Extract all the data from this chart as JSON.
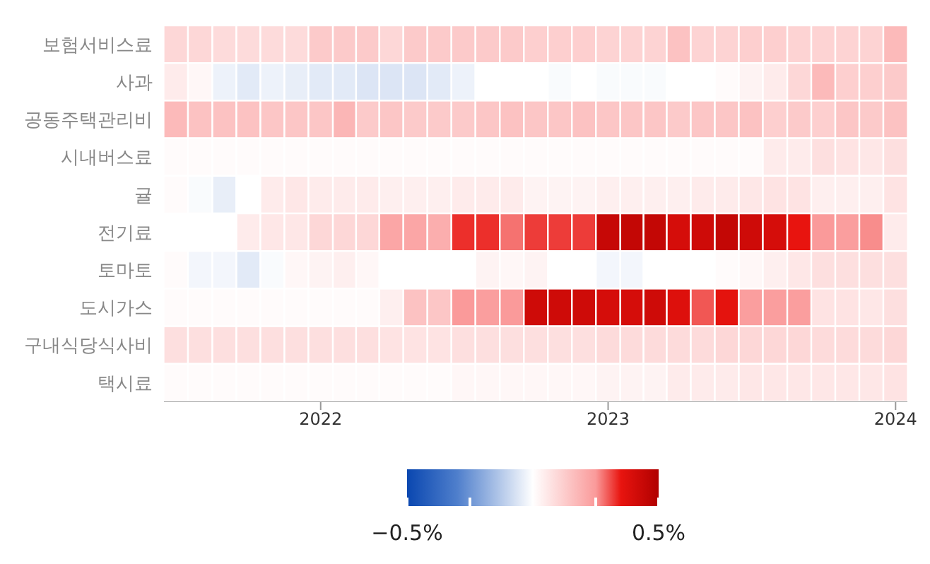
{
  "chart_data": {
    "type": "heatmap",
    "x": [
      "2021-07",
      "2021-08",
      "2021-09",
      "2021-10",
      "2021-11",
      "2021-12",
      "2022-01",
      "2022-02",
      "2022-03",
      "2022-04",
      "2022-05",
      "2022-06",
      "2022-07",
      "2022-08",
      "2022-09",
      "2022-10",
      "2022-11",
      "2022-12",
      "2023-01",
      "2023-02",
      "2023-03",
      "2023-04",
      "2023-05",
      "2023-06",
      "2023-07",
      "2023-08",
      "2023-09",
      "2023-10",
      "2023-11",
      "2023-12",
      "2024-01"
    ],
    "xlim": [
      "2021-06-16",
      "2024-01-16"
    ],
    "xticks": [
      {
        "value": "2022-01-01",
        "label": "2022"
      },
      {
        "value": "2023-01-01",
        "label": "2023"
      },
      {
        "value": "2024-01-01",
        "label": "2024"
      }
    ],
    "y_categories": [
      "보험서비스료",
      "사과",
      "공동주택관리비",
      "시내버스료",
      "귤",
      "전기료",
      "토마토",
      "도시가스",
      "구내식당식사비",
      "택시료"
    ],
    "cells": [
      [
        0.1,
        0.1,
        0.09,
        0.09,
        0.09,
        0.09,
        0.13,
        0.13,
        0.13,
        0.1,
        0.13,
        0.13,
        0.13,
        0.13,
        0.13,
        0.12,
        0.12,
        0.12,
        0.11,
        0.11,
        0.11,
        0.15,
        0.11,
        0.11,
        0.12,
        0.12,
        0.11,
        0.11,
        0.11,
        0.11,
        0.17
      ],
      [
        0.05,
        0.02,
        -0.03,
        -0.05,
        -0.03,
        -0.04,
        -0.05,
        -0.05,
        -0.06,
        -0.06,
        -0.06,
        -0.05,
        -0.03,
        0,
        0,
        0,
        -0.01,
        0,
        -0.01,
        -0.01,
        -0.01,
        0,
        0,
        0.01,
        0.03,
        0.05,
        0.1,
        0.17,
        0.12,
        0.12,
        0.13
      ],
      [
        0.17,
        0.15,
        0.15,
        0.15,
        0.14,
        0.14,
        0.14,
        0.18,
        0.13,
        0.14,
        0.13,
        0.13,
        0.13,
        0.14,
        0.15,
        0.14,
        0.14,
        0.15,
        0.14,
        0.14,
        0.14,
        0.13,
        0.14,
        0.14,
        0.15,
        0.12,
        0.13,
        0.12,
        0.14,
        0.13,
        0.15
      ],
      [
        0.01,
        0.01,
        0.01,
        0.01,
        0.01,
        0.01,
        0.01,
        0.01,
        0.01,
        0.01,
        0.01,
        0.01,
        0.01,
        0.01,
        0.01,
        0.01,
        0.01,
        0.01,
        0.01,
        0.01,
        0.01,
        0.01,
        0.01,
        0.01,
        0.01,
        0.05,
        0.05,
        0.08,
        0.07,
        0.06,
        0.08
      ],
      [
        0.01,
        -0.01,
        -0.04,
        0,
        0.05,
        0.06,
        0.05,
        0.05,
        0.05,
        0.04,
        0.04,
        0.04,
        0.05,
        0.05,
        0.05,
        0.03,
        0.03,
        0.03,
        0.04,
        0.04,
        0.04,
        0.04,
        0.05,
        0.05,
        0.06,
        0.07,
        0.07,
        0.04,
        0.04,
        0.04,
        0.07
      ],
      [
        0,
        0,
        0,
        0.05,
        0.06,
        0.06,
        0.1,
        0.1,
        0.1,
        0.22,
        0.22,
        0.2,
        0.33,
        0.33,
        0.28,
        0.32,
        0.32,
        0.32,
        0.44,
        0.45,
        0.45,
        0.4,
        0.42,
        0.45,
        0.42,
        0.4,
        0.35,
        0.25,
        0.24,
        0.26,
        0.05
      ],
      [
        0.01,
        -0.02,
        -0.02,
        -0.05,
        -0.01,
        0.02,
        0.03,
        0.04,
        0.02,
        0,
        0,
        0,
        0,
        0.03,
        0.02,
        0.03,
        0,
        0,
        -0.02,
        -0.02,
        0,
        0,
        0,
        0.01,
        0.02,
        0.04,
        0.06,
        0.08,
        0.08,
        0.08,
        0.08
      ],
      [
        0.01,
        0.01,
        0.01,
        0.01,
        0.01,
        0.01,
        0.01,
        0.01,
        0.01,
        0.04,
        0.15,
        0.14,
        0.25,
        0.24,
        0.25,
        0.42,
        0.42,
        0.42,
        0.4,
        0.4,
        0.42,
        0.38,
        0.3,
        0.36,
        0.24,
        0.24,
        0.24,
        0.07,
        0.07,
        0.06,
        0.08
      ],
      [
        0.08,
        0.08,
        0.08,
        0.08,
        0.08,
        0.08,
        0.08,
        0.08,
        0.08,
        0.07,
        0.07,
        0.07,
        0.08,
        0.08,
        0.08,
        0.08,
        0.08,
        0.08,
        0.09,
        0.09,
        0.09,
        0.09,
        0.09,
        0.1,
        0.1,
        0.1,
        0.1,
        0.09,
        0.09,
        0.09,
        0.1
      ],
      [
        0.01,
        0.01,
        0.01,
        0.01,
        0.01,
        0.01,
        0.01,
        0.01,
        0.01,
        0.01,
        0.01,
        0.01,
        0.02,
        0.02,
        0.02,
        0.02,
        0.02,
        0.02,
        0.03,
        0.03,
        0.03,
        0.05,
        0.05,
        0.05,
        0.06,
        0.06,
        0.06,
        0.06,
        0.06,
        0.06,
        0.07
      ]
    ],
    "clim": [
      -0.5,
      0.5
    ],
    "cticks": [
      {
        "value": -0.5,
        "label": "−0.5%"
      },
      {
        "value": -0.25,
        "label": null
      },
      {
        "value": 0.25,
        "label": null
      },
      {
        "value": 0.5,
        "label": "0.5%"
      }
    ]
  }
}
